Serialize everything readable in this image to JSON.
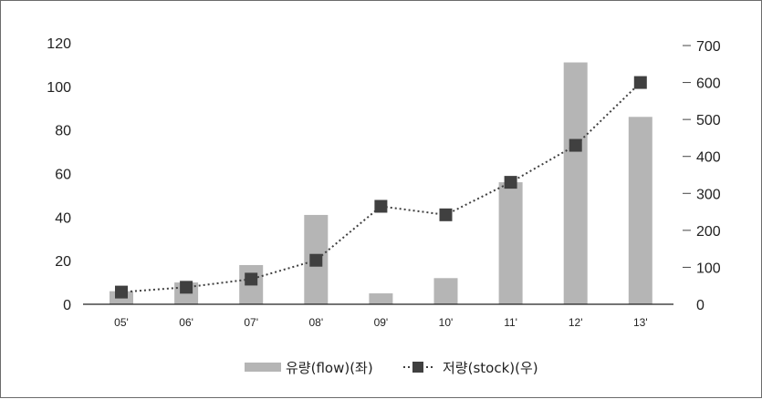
{
  "chart_data": {
    "type": "bar+line",
    "categories": [
      "05'",
      "06'",
      "07'",
      "08'",
      "09'",
      "10'",
      "11'",
      "12'",
      "13'"
    ],
    "series": [
      {
        "name": "유량(flow)(좌)",
        "type": "bar",
        "axis": "left",
        "values": [
          6,
          10,
          18,
          41,
          5,
          12,
          56,
          111,
          86
        ],
        "color": "#b5b5b5"
      },
      {
        "name": "저량(stock)(우)",
        "type": "line",
        "axis": "right",
        "values": [
          33,
          46,
          68,
          119,
          265,
          242,
          330,
          430,
          600
        ],
        "color": "#404040",
        "line_style": "dotted",
        "marker": "square"
      }
    ],
    "y_left": {
      "ylim": [
        0,
        120
      ],
      "ticks": [
        "0",
        "20",
        "40",
        "60",
        "80",
        "100",
        "120"
      ]
    },
    "y_right": {
      "ylim": [
        0,
        700
      ],
      "ticks": [
        "0",
        "100",
        "200",
        "300",
        "400",
        "500",
        "600",
        "700"
      ]
    },
    "grid": false,
    "legend_position": "bottom-center"
  }
}
